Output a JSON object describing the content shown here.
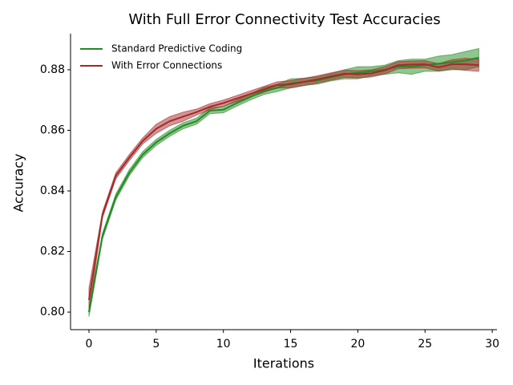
{
  "chart_data": {
    "type": "line",
    "title": "With Full Error Connectivity Test Accuracies",
    "x_label": "Iterations",
    "y_label": "Accuracy",
    "x": [
      0,
      1,
      2,
      3,
      4,
      5,
      6,
      7,
      8,
      9,
      10,
      11,
      12,
      13,
      14,
      15,
      16,
      17,
      18,
      19,
      20,
      21,
      22,
      23,
      24,
      25,
      26,
      27,
      28,
      29
    ],
    "series": [
      {
        "name": "Standard Predictive Coding",
        "color": "#228b22",
        "values": [
          0.8,
          0.825,
          0.838,
          0.846,
          0.852,
          0.856,
          0.859,
          0.8615,
          0.863,
          0.8665,
          0.8668,
          0.869,
          0.871,
          0.873,
          0.874,
          0.8755,
          0.876,
          0.8765,
          0.8775,
          0.8785,
          0.879,
          0.8795,
          0.88,
          0.881,
          0.881,
          0.8815,
          0.882,
          0.8825,
          0.883,
          0.884
        ],
        "error": [
          0.0015,
          0.001,
          0.001,
          0.001,
          0.001,
          0.001,
          0.001,
          0.001,
          0.001,
          0.001,
          0.001,
          0.001,
          0.001,
          0.0012,
          0.0012,
          0.0015,
          0.0012,
          0.0012,
          0.0012,
          0.0015,
          0.002,
          0.0015,
          0.0015,
          0.002,
          0.0025,
          0.002,
          0.0025,
          0.0025,
          0.003,
          0.003
        ]
      },
      {
        "name": "With Error Connections",
        "color": "#a52a2a",
        "values": [
          0.804,
          0.832,
          0.845,
          0.851,
          0.8565,
          0.8605,
          0.863,
          0.8645,
          0.866,
          0.8678,
          0.869,
          0.8705,
          0.872,
          0.8735,
          0.875,
          0.8752,
          0.876,
          0.8768,
          0.8778,
          0.8787,
          0.8785,
          0.8788,
          0.8798,
          0.8815,
          0.8817,
          0.8818,
          0.8808,
          0.8818,
          0.8818,
          0.8815
        ],
        "error": [
          0.004,
          0.001,
          0.001,
          0.001,
          0.001,
          0.0015,
          0.0015,
          0.0015,
          0.001,
          0.001,
          0.001,
          0.001,
          0.001,
          0.001,
          0.001,
          0.0012,
          0.0012,
          0.0012,
          0.0012,
          0.0012,
          0.0012,
          0.0012,
          0.0012,
          0.0012,
          0.0012,
          0.0012,
          0.0012,
          0.0015,
          0.002,
          0.002
        ]
      }
    ],
    "xlim": [
      -1.37,
      30.35
    ],
    "ylim": [
      0.7942,
      0.8919
    ],
    "xticks": [
      0,
      5,
      10,
      15,
      20,
      25,
      30
    ],
    "yticks": [
      {
        "value": 0.8,
        "label": "0.80"
      },
      0.82,
      0.84,
      0.86,
      0.88
    ],
    "legend": "upper left",
    "grid": false
  }
}
